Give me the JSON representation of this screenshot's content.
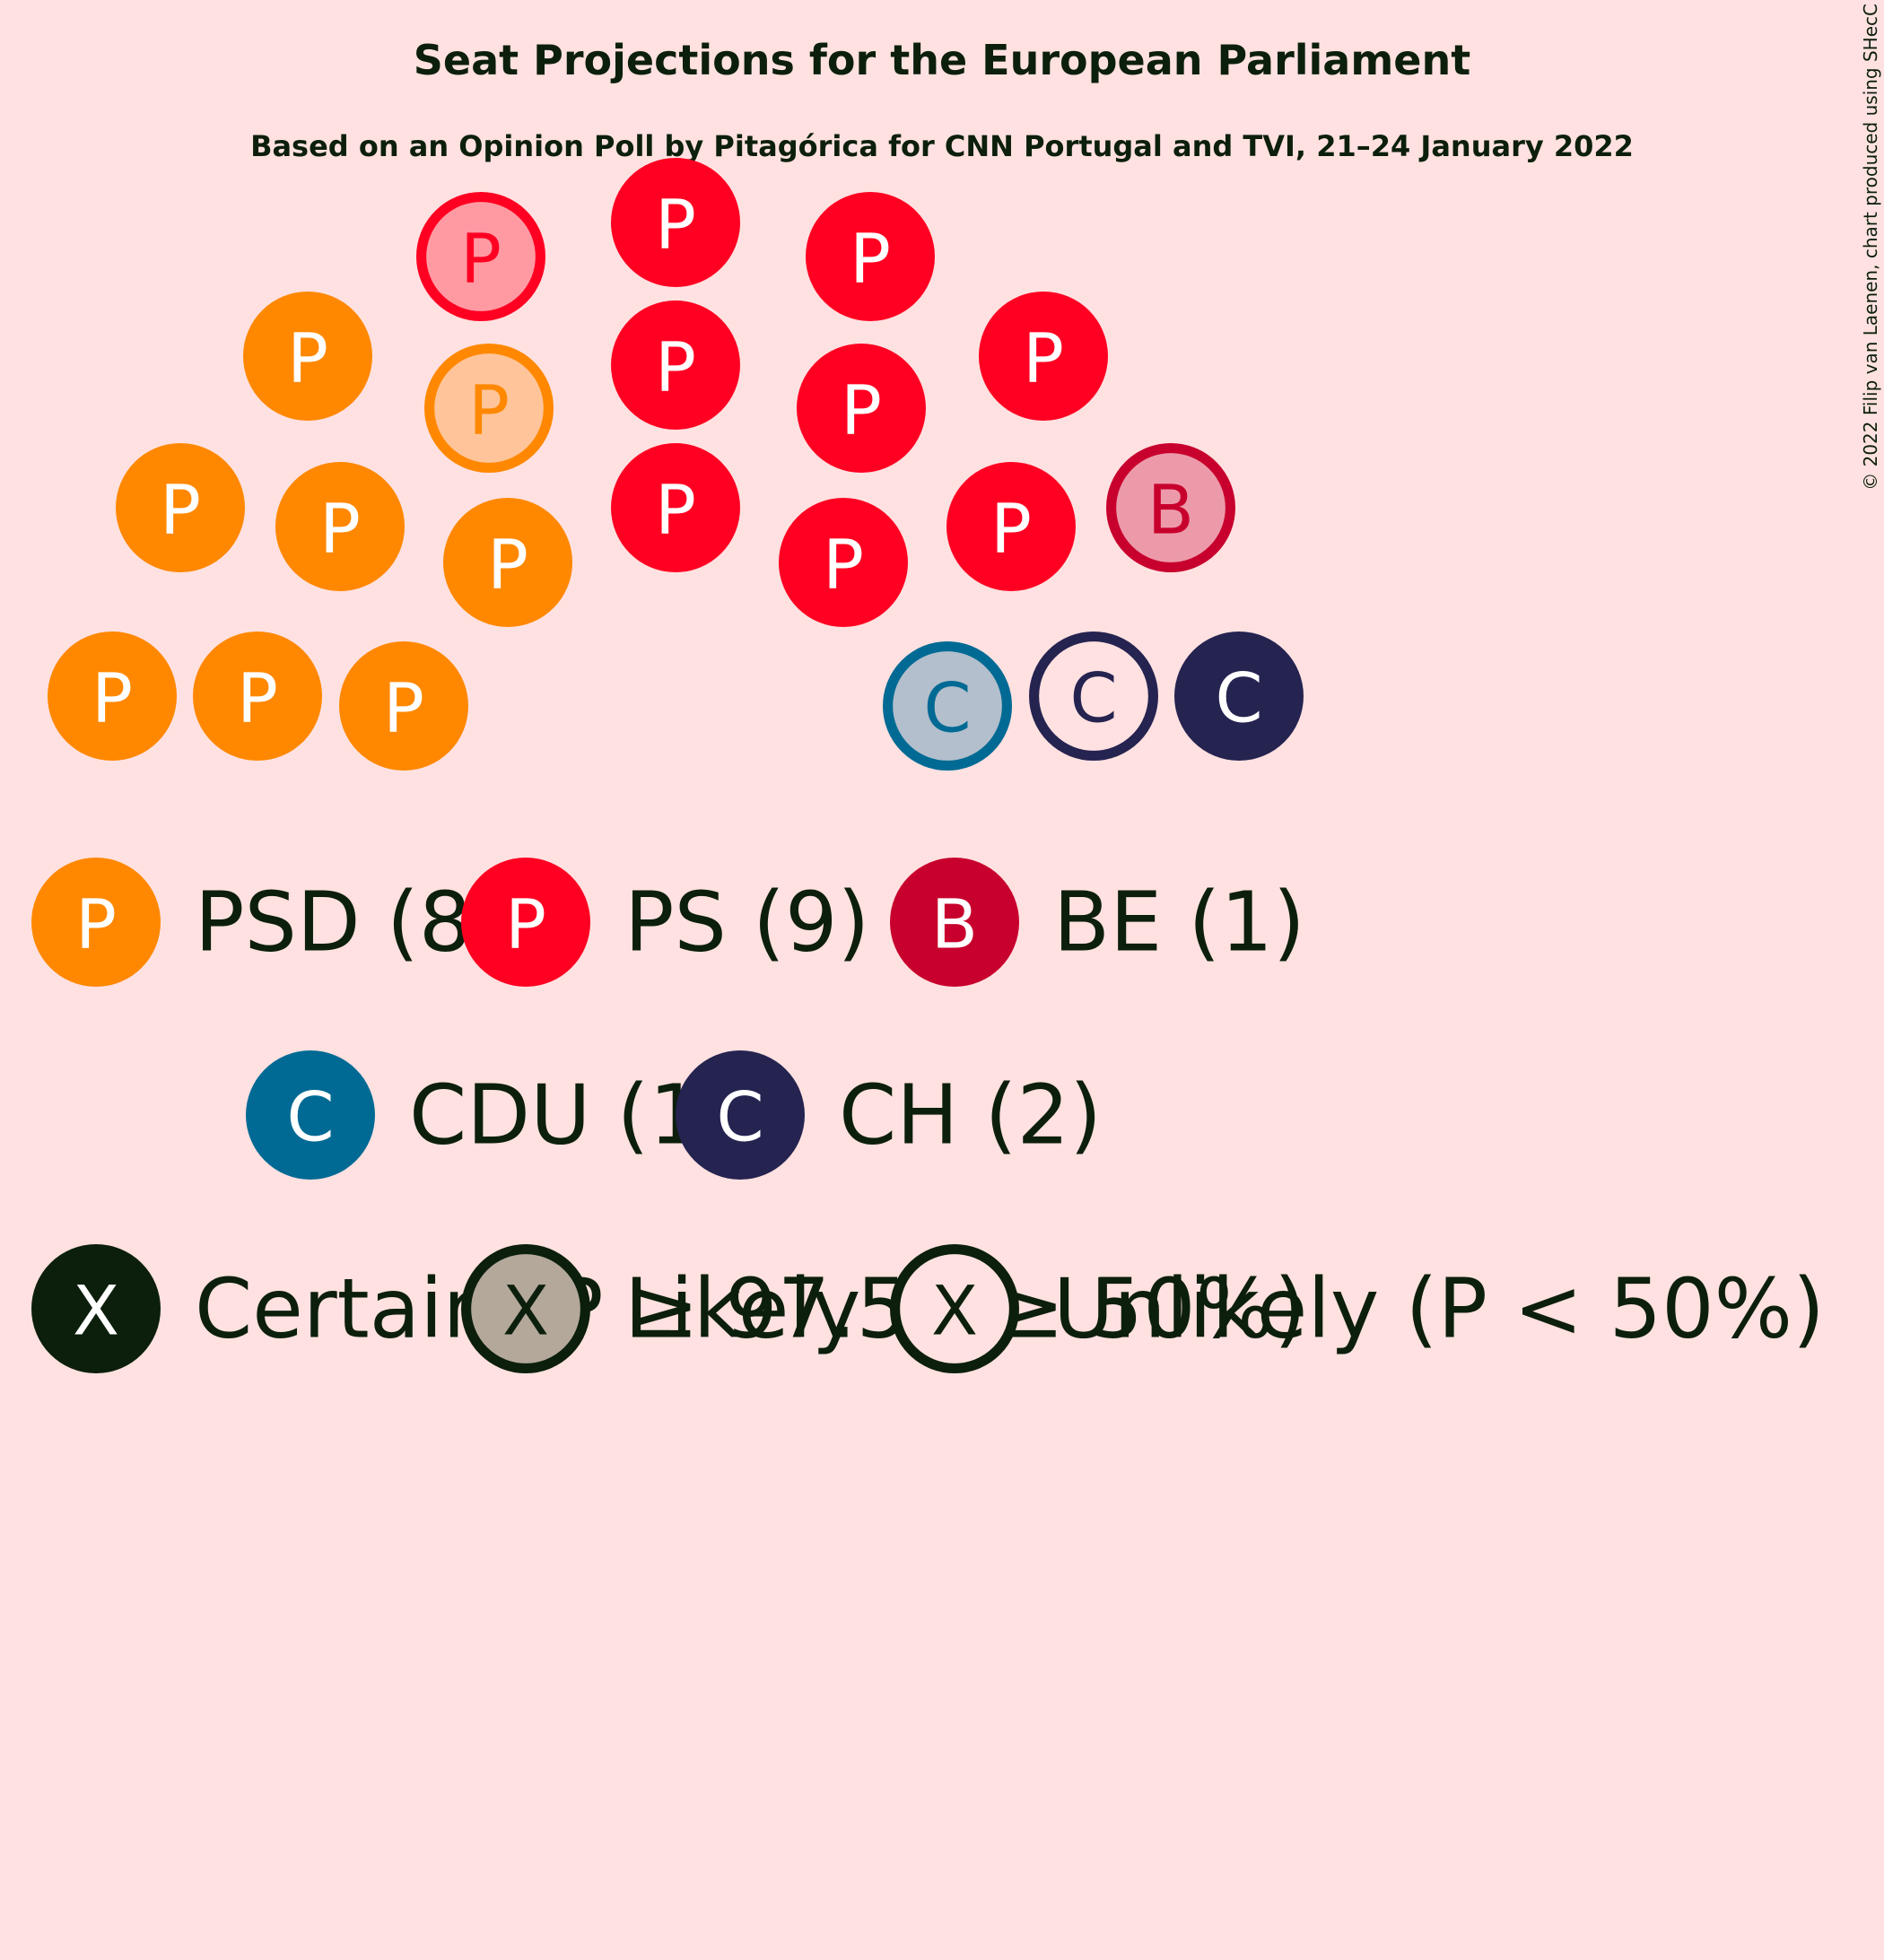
{
  "chart_data": {
    "type": "parliament",
    "title": "Seat Projections for the European Parliament",
    "subtitle": "Based on an Opinion Poll by Pitagórica for CNN Portugal and TVI, 21–24 January 2022",
    "credit": "© 2022 Filip van Laenen, chart produced using SHecC",
    "parties": [
      {
        "id": "PSD",
        "letter": "P",
        "label": "PSD (8)",
        "seats": 8,
        "color": "#ff8800",
        "light": "#ffc499"
      },
      {
        "id": "PS",
        "letter": "P",
        "label": "PS (9)",
        "seats": 9,
        "color": "#ff0022",
        "light": "#ff9aa3"
      },
      {
        "id": "BE",
        "letter": "B",
        "label": "BE (1)",
        "seats": 1,
        "color": "#c8002d",
        "light": "#ec9aaa"
      },
      {
        "id": "CDU",
        "letter": "C",
        "label": "CDU (1)",
        "seats": 1,
        "color": "#006a94",
        "light": "#b3bfcc"
      },
      {
        "id": "CH",
        "letter": "C",
        "label": "CH (2)",
        "seats": 2,
        "color": "#252350",
        "light": "#ffe1e1"
      }
    ],
    "seats": [
      {
        "party": "PSD",
        "status": "certain"
      },
      {
        "party": "PSD",
        "status": "certain"
      },
      {
        "party": "PSD",
        "status": "certain"
      },
      {
        "party": "PSD",
        "status": "certain"
      },
      {
        "party": "PSD",
        "status": "certain"
      },
      {
        "party": "PSD",
        "status": "certain"
      },
      {
        "party": "PSD",
        "status": "certain"
      },
      {
        "party": "PSD",
        "status": "likely"
      },
      {
        "party": "PS",
        "status": "likely"
      },
      {
        "party": "PS",
        "status": "certain"
      },
      {
        "party": "PS",
        "status": "certain"
      },
      {
        "party": "PS",
        "status": "certain"
      },
      {
        "party": "PS",
        "status": "certain"
      },
      {
        "party": "PS",
        "status": "certain"
      },
      {
        "party": "PS",
        "status": "certain"
      },
      {
        "party": "PS",
        "status": "certain"
      },
      {
        "party": "PS",
        "status": "certain"
      },
      {
        "party": "BE",
        "status": "likely"
      },
      {
        "party": "CDU",
        "status": "likely"
      },
      {
        "party": "CH",
        "status": "unlikely"
      },
      {
        "party": "CH",
        "status": "certain"
      }
    ],
    "status_legend": [
      {
        "status": "certain",
        "letter": "X",
        "label": "Certain (P ≥ 97.5%)"
      },
      {
        "status": "likely",
        "letter": "X",
        "label": "Likely (P ≥ 50%)"
      },
      {
        "status": "unlikely",
        "letter": "X",
        "label": "Unlikely (P < 50%)"
      }
    ],
    "status_colors": {
      "dark": "#0c1f0c",
      "grey": "#b3a89a"
    }
  }
}
